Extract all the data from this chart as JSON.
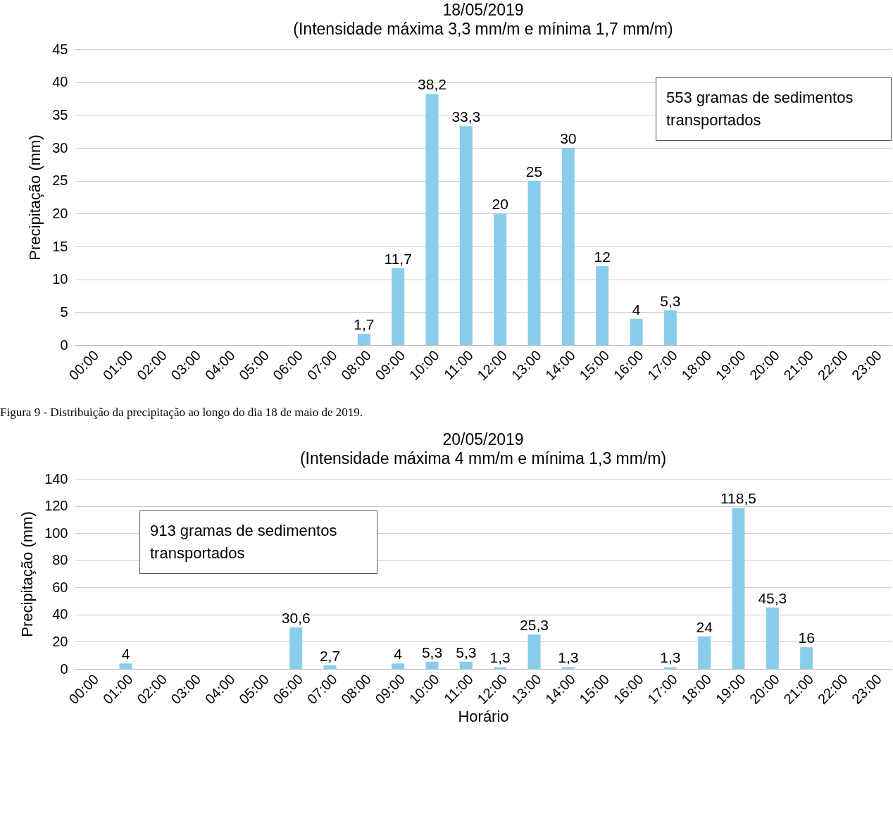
{
  "chart_data": [
    {
      "type": "bar",
      "title": "18/05/2019",
      "subtitle": "(Intensidade máxima 3,3 mm/m e mínima 1,7 mm/m)",
      "ylabel": "Precipitação (mm)",
      "categories": [
        "00:00",
        "01:00",
        "02:00",
        "03:00",
        "04:00",
        "05:00",
        "06:00",
        "07:00",
        "08:00",
        "09:00",
        "10:00",
        "11:00",
        "12:00",
        "13:00",
        "14:00",
        "15:00",
        "16:00",
        "17:00",
        "18:00",
        "19:00",
        "20:00",
        "21:00",
        "22:00",
        "23:00"
      ],
      "values": [
        null,
        null,
        null,
        null,
        null,
        null,
        null,
        null,
        1.7,
        11.7,
        38.2,
        33.3,
        20,
        25,
        30,
        12,
        4,
        5.3,
        null,
        null,
        null,
        null,
        null,
        null
      ],
      "value_labels": [
        null,
        null,
        null,
        null,
        null,
        null,
        null,
        null,
        "1,7",
        "11,7",
        "38,2",
        "33,3",
        "20",
        "25",
        "30",
        "12",
        "4",
        "5,3",
        null,
        null,
        null,
        null,
        null,
        null
      ],
      "color": "#89cdea",
      "ylim": [
        0,
        45
      ],
      "yticks": [
        0,
        5,
        10,
        15,
        20,
        25,
        30,
        35,
        40,
        45
      ],
      "grid": "y",
      "annotations": [
        "553 gramas de sedimentos\ntransportados",
        "Figura 9 - Distribuição da precipitação ao longo do dia 18 de maio de 2019."
      ]
    },
    {
      "type": "bar",
      "title": "20/05/2019",
      "subtitle": "(Intensidade máxima 4 mm/m e mínima 1,3 mm/m)",
      "ylabel": "Precipitação (mm)",
      "xlabel": "Horário",
      "categories": [
        "00:00",
        "01:00",
        "02:00",
        "03:00",
        "04:00",
        "05:00",
        "06:00",
        "07:00",
        "08:00",
        "09:00",
        "10:00",
        "11:00",
        "12:00",
        "13:00",
        "14:00",
        "15:00",
        "16:00",
        "17:00",
        "18:00",
        "19:00",
        "20:00",
        "21:00",
        "22:00",
        "23:00"
      ],
      "values": [
        null,
        4,
        null,
        null,
        null,
        null,
        30.6,
        2.7,
        null,
        4,
        5.3,
        5.3,
        1.3,
        25.3,
        1.3,
        null,
        null,
        1.3,
        24,
        118.5,
        45.3,
        16,
        null,
        null
      ],
      "value_labels": [
        null,
        "4",
        null,
        null,
        null,
        null,
        "30,6",
        "2,7",
        null,
        "4",
        "5,3",
        "5,3",
        "1,3",
        "25,3",
        "1,3",
        null,
        null,
        "1,3",
        "24",
        "118,5",
        "45,3",
        "16",
        null,
        null
      ],
      "color": "#89cdea",
      "ylim": [
        0,
        140
      ],
      "yticks": [
        0,
        20,
        40,
        60,
        80,
        100,
        120,
        140
      ],
      "grid": "y",
      "annotations": [
        "913 gramas de sedimentos\ntransportados"
      ]
    }
  ]
}
